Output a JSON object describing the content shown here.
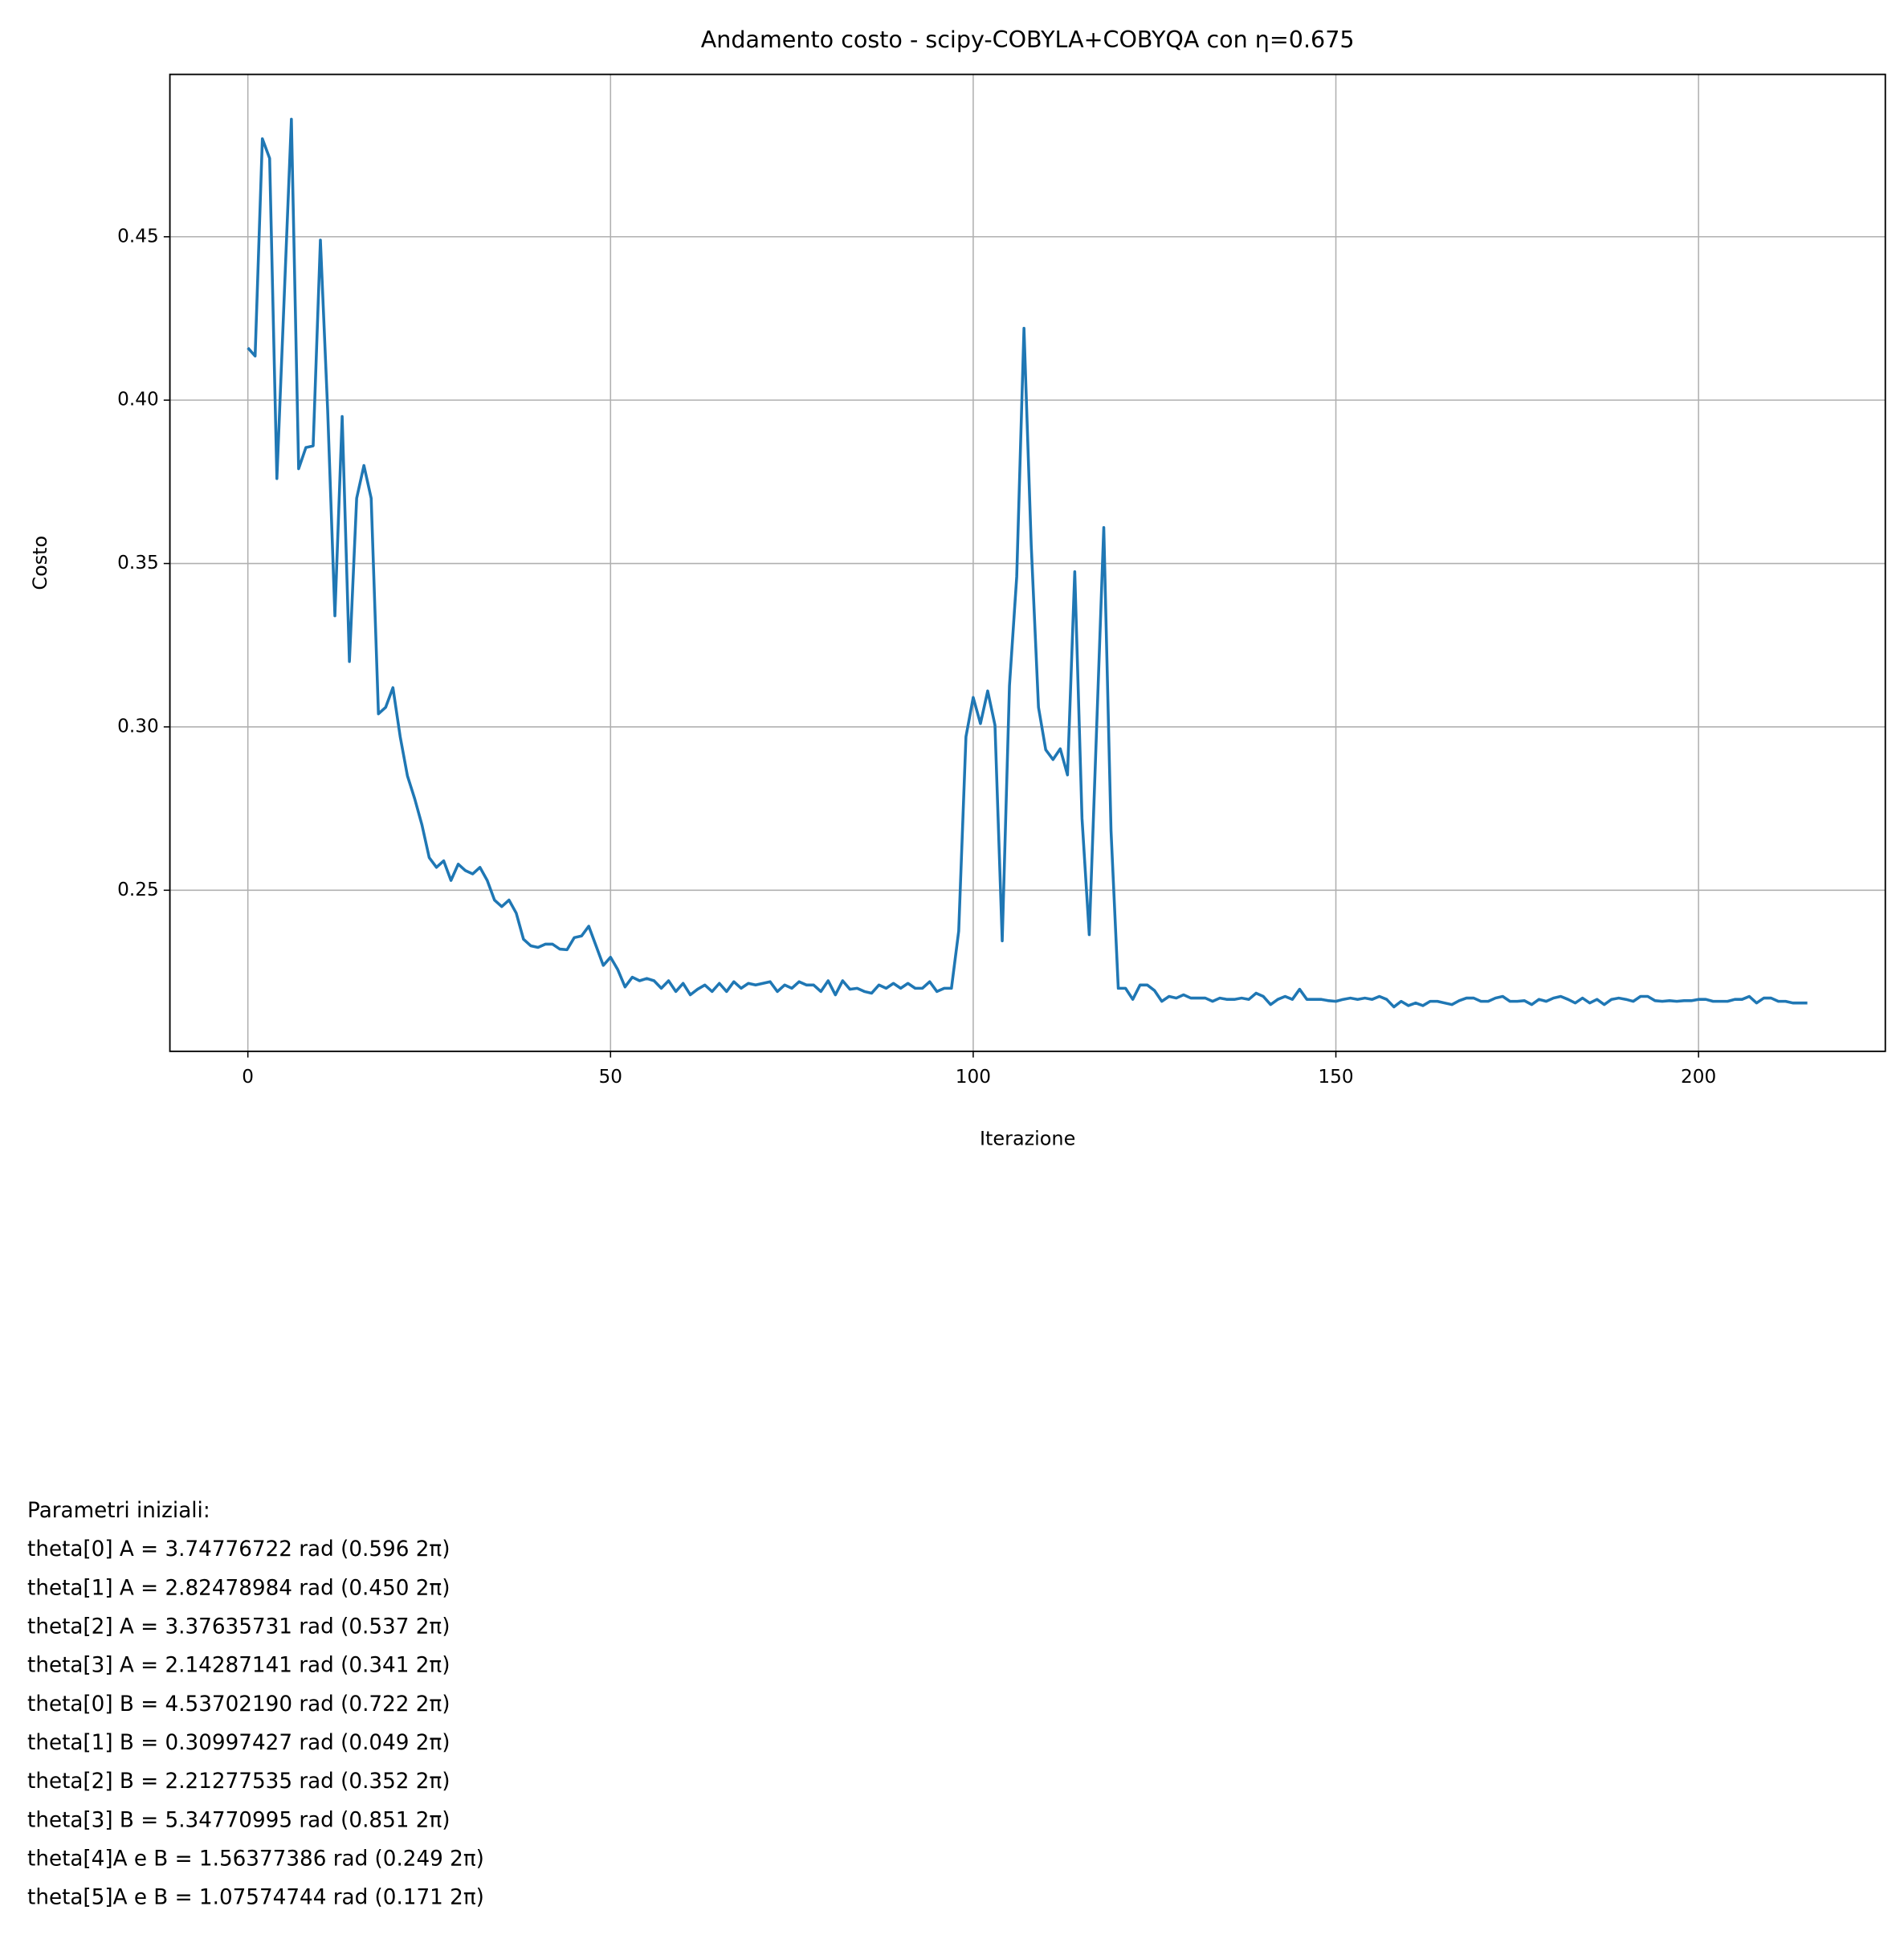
{
  "chart_data": {
    "type": "line",
    "title": "Andamento costo - scipy-COBYLA+COBYQA con η=0.675",
    "xlabel": "Iterazione",
    "ylabel": "Costo",
    "grid": true,
    "xlim": [
      -10.75,
      225.75
    ],
    "ylim": [
      0.2007,
      0.4997
    ],
    "xticks": [
      0,
      50,
      100,
      150,
      200
    ],
    "yticks": [
      0.25,
      {
        "value": 0.3,
        "label": "0.30"
      },
      0.35,
      {
        "value": 0.4,
        "label": "0.40"
      },
      0.45
    ],
    "x": [
      0,
      1,
      2,
      3,
      4,
      5,
      6,
      7,
      8,
      9,
      10,
      11,
      12,
      13,
      14,
      15,
      16,
      17,
      18,
      19,
      20,
      21,
      22,
      23,
      24,
      25,
      26,
      27,
      28,
      29,
      30,
      31,
      32,
      33,
      34,
      35,
      36,
      37,
      38,
      39,
      40,
      41,
      42,
      43,
      44,
      45,
      46,
      47,
      48,
      49,
      50,
      51,
      52,
      53,
      54,
      55,
      56,
      57,
      58,
      59,
      60,
      61,
      62,
      63,
      64,
      65,
      66,
      67,
      68,
      69,
      70,
      71,
      72,
      73,
      74,
      75,
      76,
      77,
      78,
      79,
      80,
      81,
      82,
      83,
      84,
      85,
      86,
      87,
      88,
      89,
      90,
      91,
      92,
      93,
      94,
      95,
      96,
      97,
      98,
      99,
      100,
      101,
      102,
      103,
      104,
      105,
      106,
      107,
      108,
      109,
      110,
      111,
      112,
      113,
      114,
      115,
      116,
      117,
      118,
      119,
      120,
      121,
      122,
      123,
      124,
      125,
      126,
      127,
      128,
      129,
      130,
      131,
      132,
      133,
      134,
      135,
      136,
      137,
      138,
      139,
      140,
      141,
      142,
      143,
      144,
      145,
      146,
      147,
      148,
      149,
      150,
      151,
      152,
      153,
      154,
      155,
      156,
      157,
      158,
      159,
      160,
      161,
      162,
      163,
      164,
      165,
      166,
      167,
      168,
      169,
      170,
      171,
      172,
      173,
      174,
      175,
      176,
      177,
      178,
      179,
      180,
      181,
      182,
      183,
      184,
      185,
      186,
      187,
      188,
      189,
      190,
      191,
      192,
      193,
      194,
      195,
      196,
      197,
      198,
      199,
      200,
      201,
      202,
      203,
      204,
      205,
      206,
      207,
      208,
      209,
      210,
      211,
      212,
      213,
      214,
      215
    ],
    "series": [
      {
        "color": "#1f77b4",
        "values": [
          0.416,
          0.4135,
          0.48,
          0.474,
          0.376,
          0.431,
          0.486,
          0.379,
          0.3855,
          0.386,
          0.449,
          0.397,
          0.334,
          0.395,
          0.32,
          0.37,
          0.38,
          0.37,
          0.304,
          0.306,
          0.312,
          0.297,
          0.285,
          0.278,
          0.27,
          0.26,
          0.257,
          0.259,
          0.253,
          0.258,
          0.256,
          0.255,
          0.257,
          0.253,
          0.247,
          0.245,
          0.247,
          0.243,
          0.235,
          0.233,
          0.2325,
          0.2335,
          0.2335,
          0.232,
          0.2318,
          0.2355,
          0.236,
          0.239,
          0.233,
          0.227,
          0.2295,
          0.2257,
          0.2204,
          0.2234,
          0.2223,
          0.223,
          0.2223,
          0.22,
          0.2223,
          0.219,
          0.2215,
          0.218,
          0.2197,
          0.221,
          0.219,
          0.2215,
          0.219,
          0.222,
          0.22,
          0.2215,
          0.221,
          0.2215,
          0.222,
          0.219,
          0.221,
          0.22,
          0.222,
          0.221,
          0.221,
          0.219,
          0.2223,
          0.218,
          0.2223,
          0.2197,
          0.22,
          0.219,
          0.2185,
          0.221,
          0.22,
          0.2215,
          0.22,
          0.2215,
          0.22,
          0.22,
          0.222,
          0.219,
          0.22,
          0.22,
          0.2375,
          0.297,
          0.309,
          0.301,
          0.311,
          0.3005,
          0.2345,
          0.3126,
          0.346,
          0.422,
          0.3555,
          0.306,
          0.293,
          0.29,
          0.2933,
          0.2853,
          0.3475,
          0.272,
          0.2364,
          0.2986,
          0.361,
          0.2682,
          0.22,
          0.22,
          0.2166,
          0.221,
          0.221,
          0.2193,
          0.216,
          0.2175,
          0.217,
          0.218,
          0.217,
          0.217,
          0.217,
          0.216,
          0.217,
          0.2166,
          0.2166,
          0.217,
          0.2166,
          0.2185,
          0.2175,
          0.215,
          0.2166,
          0.2175,
          0.2166,
          0.2197,
          0.2166,
          0.2166,
          0.2166,
          0.2162,
          0.216,
          0.2166,
          0.217,
          0.2166,
          0.217,
          0.2166,
          0.2175,
          0.2166,
          0.2143,
          0.216,
          0.2147,
          0.2155,
          0.2147,
          0.216,
          0.216,
          0.2155,
          0.215,
          0.2162,
          0.217,
          0.217,
          0.216,
          0.216,
          0.217,
          0.2175,
          0.216,
          0.216,
          0.2162,
          0.215,
          0.2166,
          0.216,
          0.217,
          0.2175,
          0.2166,
          0.2155,
          0.217,
          0.2155,
          0.2166,
          0.215,
          0.2166,
          0.217,
          0.2166,
          0.216,
          0.2175,
          0.2175,
          0.2162,
          0.216,
          0.2162,
          0.216,
          0.2162,
          0.2162,
          0.2166,
          0.2166,
          0.216,
          0.216,
          0.216,
          0.2166,
          0.2166,
          0.2175,
          0.2155,
          0.217,
          0.217,
          0.216,
          0.216,
          0.2155,
          0.2155,
          0.2155
        ]
      }
    ],
    "annotation_lines": [
      "Parametri iniziali:",
      "theta[0] A = 3.74776722 rad (0.596 2π)",
      "theta[1] A = 2.82478984 rad (0.450 2π)",
      "theta[2] A = 3.37635731 rad (0.537 2π)",
      "theta[3] A = 2.14287141 rad (0.341 2π)",
      "theta[0] B = 4.53702190 rad (0.722 2π)",
      "theta[1] B = 0.30997427 rad (0.049 2π)",
      "theta[2] B = 2.21277535 rad (0.352 2π)",
      "theta[3] B = 5.34770995 rad (0.851 2π)",
      "theta[4]A e B = 1.56377386 rad (0.249 2π)",
      "theta[5]A e B = 1.07574744 rad (0.171 2π)"
    ]
  }
}
